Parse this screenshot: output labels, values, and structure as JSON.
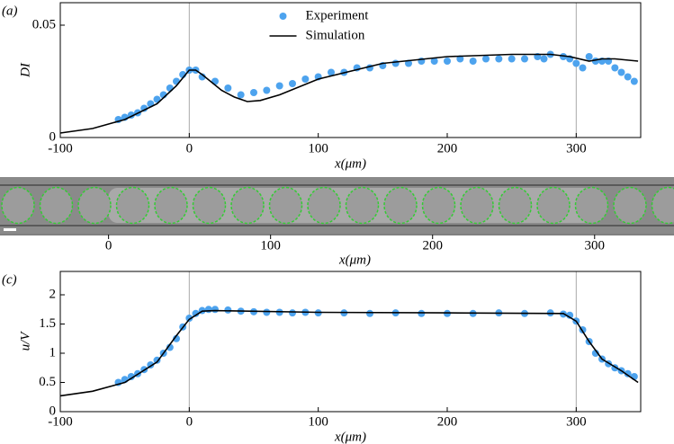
{
  "chart_data": [
    {
      "type": "scatter-line",
      "panel_label": "(a)",
      "ylabel": "DI",
      "xlabel": "x(μm)",
      "xlim": [
        -100,
        350
      ],
      "xticks": [
        -100,
        0,
        100,
        200,
        300
      ],
      "ylim": [
        0,
        0.06
      ],
      "yticks": [
        0,
        0.05
      ],
      "vlines": [
        0,
        300
      ],
      "legend": "upper center",
      "series": [
        {
          "name": "Experiment",
          "kind": "scatter",
          "color": "#4da3ee",
          "x": [
            -55,
            -50,
            -45,
            -40,
            -35,
            -30,
            -25,
            -20,
            -15,
            -10,
            -5,
            0,
            5,
            10,
            20,
            30,
            40,
            50,
            60,
            70,
            80,
            90,
            100,
            110,
            120,
            130,
            140,
            150,
            160,
            170,
            180,
            190,
            200,
            210,
            220,
            230,
            240,
            250,
            260,
            270,
            275,
            280,
            290,
            295,
            300,
            305,
            310,
            315,
            320,
            325,
            330,
            335,
            340,
            345
          ],
          "values": [
            0.008,
            0.009,
            0.01,
            0.011,
            0.013,
            0.015,
            0.017,
            0.019,
            0.022,
            0.025,
            0.028,
            0.03,
            0.03,
            0.027,
            0.025,
            0.022,
            0.019,
            0.02,
            0.021,
            0.023,
            0.024,
            0.026,
            0.027,
            0.029,
            0.029,
            0.031,
            0.031,
            0.032,
            0.033,
            0.033,
            0.034,
            0.034,
            0.034,
            0.035,
            0.034,
            0.035,
            0.035,
            0.035,
            0.035,
            0.036,
            0.035,
            0.037,
            0.036,
            0.035,
            0.033,
            0.031,
            0.036,
            0.034,
            0.034,
            0.034,
            0.031,
            0.029,
            0.027,
            0.025
          ]
        },
        {
          "name": "Simulation",
          "kind": "line",
          "color": "#000000",
          "x": [
            -100,
            -75,
            -50,
            -25,
            -10,
            0,
            5,
            10,
            25,
            35,
            45,
            55,
            70,
            100,
            150,
            200,
            250,
            280,
            295,
            310,
            320,
            330,
            348
          ],
          "values": [
            0.002,
            0.004,
            0.008,
            0.015,
            0.023,
            0.03,
            0.03,
            0.028,
            0.021,
            0.018,
            0.016,
            0.0165,
            0.019,
            0.026,
            0.033,
            0.036,
            0.037,
            0.037,
            0.036,
            0.034,
            0.035,
            0.035,
            0.034
          ]
        }
      ]
    },
    {
      "type": "image",
      "panel_label": "(b)",
      "xlabel": "x(μm)",
      "xlim": [
        -67,
        349
      ],
      "xticks": [
        0,
        100,
        200,
        300
      ]
    },
    {
      "type": "scatter-line",
      "panel_label": "(c)",
      "ylabel": "u/V",
      "xlabel": "x(μm)",
      "xlim": [
        -100,
        350
      ],
      "xticks": [
        -100,
        0,
        100,
        200,
        300
      ],
      "ylim": [
        0,
        2.4
      ],
      "yticks": [
        0,
        0.5,
        1,
        1.5,
        2
      ],
      "vlines": [
        0,
        300
      ],
      "series": [
        {
          "name": "Experiment",
          "kind": "scatter",
          "color": "#4da3ee",
          "x": [
            -55,
            -50,
            -45,
            -40,
            -35,
            -30,
            -25,
            -20,
            -15,
            -10,
            -5,
            0,
            5,
            10,
            15,
            20,
            30,
            40,
            50,
            60,
            70,
            80,
            90,
            100,
            120,
            140,
            160,
            180,
            200,
            220,
            240,
            260,
            280,
            290,
            295,
            300,
            305,
            310,
            315,
            320,
            325,
            330,
            335,
            340,
            345
          ],
          "values": [
            0.5,
            0.55,
            0.6,
            0.65,
            0.72,
            0.8,
            0.88,
            1.0,
            1.1,
            1.25,
            1.45,
            1.6,
            1.68,
            1.73,
            1.75,
            1.75,
            1.74,
            1.72,
            1.71,
            1.7,
            1.7,
            1.69,
            1.7,
            1.69,
            1.69,
            1.68,
            1.69,
            1.68,
            1.68,
            1.68,
            1.69,
            1.68,
            1.69,
            1.67,
            1.65,
            1.55,
            1.4,
            1.2,
            1.0,
            0.9,
            0.82,
            0.75,
            0.7,
            0.65,
            0.6
          ]
        },
        {
          "name": "Simulation",
          "kind": "line",
          "color": "#000000",
          "x": [
            -100,
            -75,
            -50,
            -25,
            -10,
            0,
            10,
            20,
            100,
            200,
            290,
            300,
            310,
            320,
            335,
            348
          ],
          "values": [
            0.27,
            0.35,
            0.5,
            0.85,
            1.3,
            1.58,
            1.72,
            1.73,
            1.7,
            1.69,
            1.68,
            1.55,
            1.2,
            0.9,
            0.7,
            0.5
          ]
        }
      ]
    }
  ]
}
